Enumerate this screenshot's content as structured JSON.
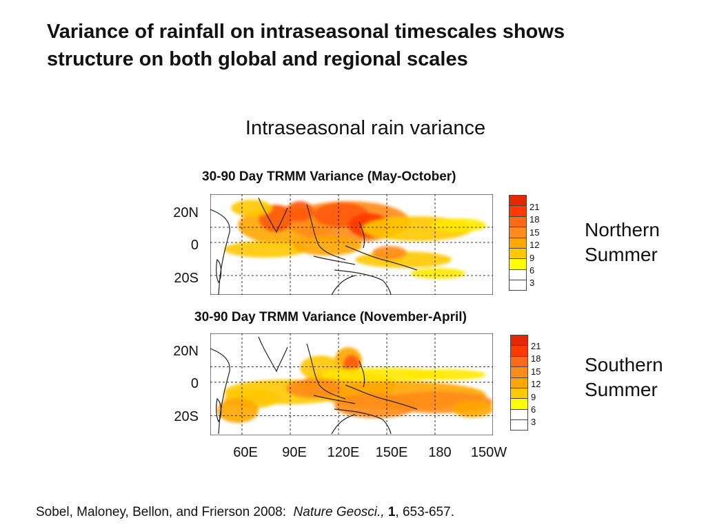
{
  "slide": {
    "title": "Variance of rainfall on intraseasonal timescales shows structure on both global and regional scales",
    "subtitle": "Intraseasonal rain variance"
  },
  "panels": [
    {
      "title": "30-90 Day TRMM Variance (May-October)",
      "season_line1": "Northern",
      "season_line2": "Summer"
    },
    {
      "title": "30-90 Day TRMM Variance (November-April)",
      "season_line1": "Southern",
      "season_line2": "Summer"
    }
  ],
  "lat_labels": [
    "20N",
    "0",
    "20S"
  ],
  "lon_labels": [
    "60E",
    "90E",
    "120E",
    "150E",
    "180",
    "150W"
  ],
  "legend": {
    "levels": [
      {
        "label": "21",
        "color": "#ff3a00"
      },
      {
        "label": "18",
        "color": "#ff6a1a"
      },
      {
        "label": "15",
        "color": "#ff8c1a"
      },
      {
        "label": "12",
        "color": "#ffa600"
      },
      {
        "label": "9",
        "color": "#ffc800"
      },
      {
        "label": "6",
        "color": "#ffff00"
      },
      {
        "label": "3",
        "color": "#ffffff"
      }
    ],
    "top_color": "#e62800"
  },
  "citation": {
    "authors": "Sobel, Maloney, Bellon, and Frierson 2008:",
    "journal": "Nature Geosci.,",
    "volume": "1",
    "pages": ", 653-657."
  }
}
